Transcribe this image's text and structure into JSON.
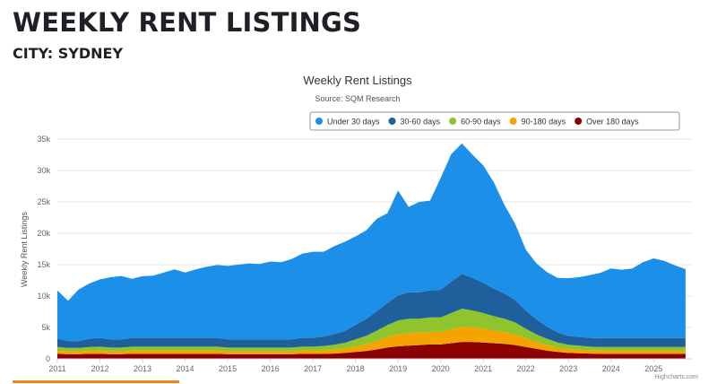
{
  "page": {
    "title": "WEEKLY RENT LISTINGS",
    "subtitle": "CITY: SYDNEY"
  },
  "chart_data": {
    "type": "area",
    "stacked": true,
    "title": "Weekly Rent Listings",
    "subtitle": "Source: SQM Research",
    "xlabel": "",
    "ylabel": "Weekly Rent Listings",
    "xlim": [
      2011,
      2025.9
    ],
    "ylim": [
      0,
      35000
    ],
    "y_ticks": [
      0,
      5000,
      10000,
      15000,
      20000,
      25000,
      30000,
      35000
    ],
    "y_tick_labels": [
      "0",
      "5k",
      "10k",
      "15k",
      "20k",
      "25k",
      "30k",
      "35k"
    ],
    "x_ticks": [
      2011,
      2012,
      2013,
      2014,
      2015,
      2016,
      2017,
      2018,
      2019,
      2020,
      2021,
      2022,
      2023,
      2024,
      2025
    ],
    "x_tick_labels": [
      "2011",
      "2012",
      "2013",
      "2014",
      "2015",
      "2016",
      "2017",
      "2018",
      "2019",
      "2020",
      "2021",
      "2022",
      "2023",
      "2024",
      "2025"
    ],
    "grid": "horizontal",
    "legend_position": "top-right",
    "credit": "Highcharts.com",
    "x": [
      2011.0,
      2011.25,
      2011.5,
      2011.75,
      2012.0,
      2012.25,
      2012.5,
      2012.75,
      2013.0,
      2013.25,
      2013.5,
      2013.75,
      2014.0,
      2014.25,
      2014.5,
      2014.75,
      2015.0,
      2015.25,
      2015.5,
      2015.75,
      2016.0,
      2016.25,
      2016.5,
      2016.75,
      2017.0,
      2017.25,
      2017.5,
      2017.75,
      2018.0,
      2018.25,
      2018.5,
      2018.75,
      2019.0,
      2019.25,
      2019.5,
      2019.75,
      2020.0,
      2020.25,
      2020.5,
      2020.75,
      2021.0,
      2021.25,
      2021.5,
      2021.75,
      2022.0,
      2022.25,
      2022.5,
      2022.75,
      2023.0,
      2023.25,
      2023.5,
      2023.75,
      2024.0,
      2024.25,
      2024.5,
      2024.75,
      2025.0,
      2025.25,
      2025.5,
      2025.75
    ],
    "series": [
      {
        "name": "Over 180 days",
        "color": "#8b0000",
        "values": [
          800,
          750,
          750,
          800,
          800,
          750,
          750,
          800,
          800,
          800,
          800,
          800,
          800,
          800,
          800,
          800,
          750,
          750,
          750,
          750,
          750,
          750,
          750,
          800,
          800,
          800,
          850,
          950,
          1100,
          1250,
          1500,
          1800,
          2000,
          2100,
          2200,
          2300,
          2300,
          2500,
          2700,
          2700,
          2600,
          2500,
          2400,
          2200,
          1900,
          1600,
          1300,
          1100,
          950,
          900,
          850,
          800,
          800,
          800,
          800,
          800,
          800,
          800,
          800,
          800
        ]
      },
      {
        "name": "90-180 days",
        "color": "#f5a300",
        "values": [
          500,
          450,
          450,
          500,
          500,
          450,
          450,
          500,
          500,
          500,
          500,
          500,
          500,
          500,
          500,
          500,
          450,
          450,
          450,
          450,
          450,
          450,
          450,
          500,
          500,
          550,
          600,
          700,
          900,
          1100,
          1400,
          1700,
          1900,
          2000,
          2000,
          2000,
          2000,
          2200,
          2400,
          2300,
          2200,
          2000,
          1900,
          1700,
          1400,
          1100,
          900,
          700,
          600,
          550,
          500,
          500,
          500,
          500,
          500,
          500,
          500,
          500,
          500,
          500
        ]
      },
      {
        "name": "60-90 days",
        "color": "#8fc42c",
        "values": [
          600,
          550,
          550,
          600,
          650,
          600,
          600,
          650,
          650,
          650,
          650,
          650,
          650,
          650,
          650,
          650,
          600,
          600,
          600,
          600,
          600,
          600,
          600,
          650,
          650,
          700,
          800,
          900,
          1100,
          1300,
          1600,
          1900,
          2200,
          2300,
          2200,
          2300,
          2300,
          2600,
          2900,
          2700,
          2500,
          2300,
          2100,
          1900,
          1500,
          1200,
          1000,
          800,
          700,
          650,
          600,
          600,
          600,
          600,
          600,
          600,
          600,
          600,
          600,
          600
        ]
      },
      {
        "name": "30-60 days",
        "color": "#1e5f9c",
        "values": [
          1300,
          1100,
          1100,
          1300,
          1400,
          1300,
          1300,
          1400,
          1400,
          1400,
          1400,
          1400,
          1400,
          1400,
          1400,
          1400,
          1300,
          1300,
          1300,
          1300,
          1300,
          1300,
          1300,
          1400,
          1400,
          1500,
          1700,
          1900,
          2300,
          2700,
          3100,
          3500,
          4000,
          4200,
          4200,
          4300,
          4400,
          5000,
          5500,
          5200,
          4800,
          4400,
          4000,
          3600,
          2900,
          2400,
          1900,
          1600,
          1400,
          1400,
          1400,
          1400,
          1400,
          1400,
          1400,
          1400,
          1400,
          1400,
          1400,
          1400
        ]
      },
      {
        "name": "Under 30 days",
        "color": "#1c8fe8",
        "values": [
          7700,
          6400,
          8200,
          8800,
          9300,
          9900,
          10100,
          9400,
          9800,
          9900,
          10400,
          10900,
          10400,
          10900,
          11300,
          11600,
          11700,
          11900,
          12100,
          12000,
          12400,
          12300,
          12800,
          13400,
          13700,
          13500,
          14000,
          14200,
          14100,
          14100,
          14700,
          14300,
          16700,
          13600,
          14400,
          14300,
          17800,
          20300,
          20800,
          19600,
          18700,
          16900,
          14100,
          12100,
          9700,
          8900,
          8700,
          8700,
          9200,
          9500,
          10000,
          10400,
          11100,
          10900,
          11100,
          12100,
          12700,
          12300,
          11600,
          11000
        ]
      }
    ]
  }
}
